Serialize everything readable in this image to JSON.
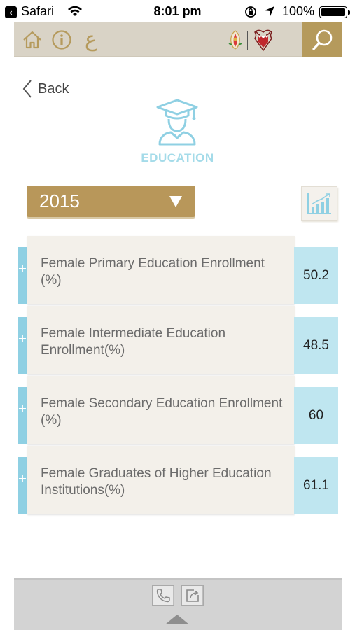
{
  "status_bar": {
    "back_app": "Safari",
    "time": "8:01 pm",
    "battery": "100%"
  },
  "topbar": {
    "arabic_label": "ع",
    "icons": [
      "home-icon",
      "info-icon",
      "arabic-language-icon",
      "emblem-icon",
      "bahrain-emblem-icon",
      "search-icon"
    ]
  },
  "back_label": "Back",
  "category": {
    "title": "EDUCATION",
    "icon": "graduate-icon"
  },
  "year_select": {
    "value": "2015"
  },
  "indicators": [
    {
      "label": "Female Primary Education Enrollment (%)",
      "value": "50.2"
    },
    {
      "label": "Female Intermediate Education Enrollment(%)",
      "value": "48.5"
    },
    {
      "label": "Female Secondary Education Enrollment (%)",
      "value": "60"
    },
    {
      "label": "Female Graduates of Higher Education Institutions(%)",
      "value": "61.1"
    }
  ],
  "colors": {
    "gold": "#b59a5c",
    "light_blue": "#a4dbe9",
    "row_bg": "#f3f0ea",
    "value_bg": "#bfe6f0"
  }
}
